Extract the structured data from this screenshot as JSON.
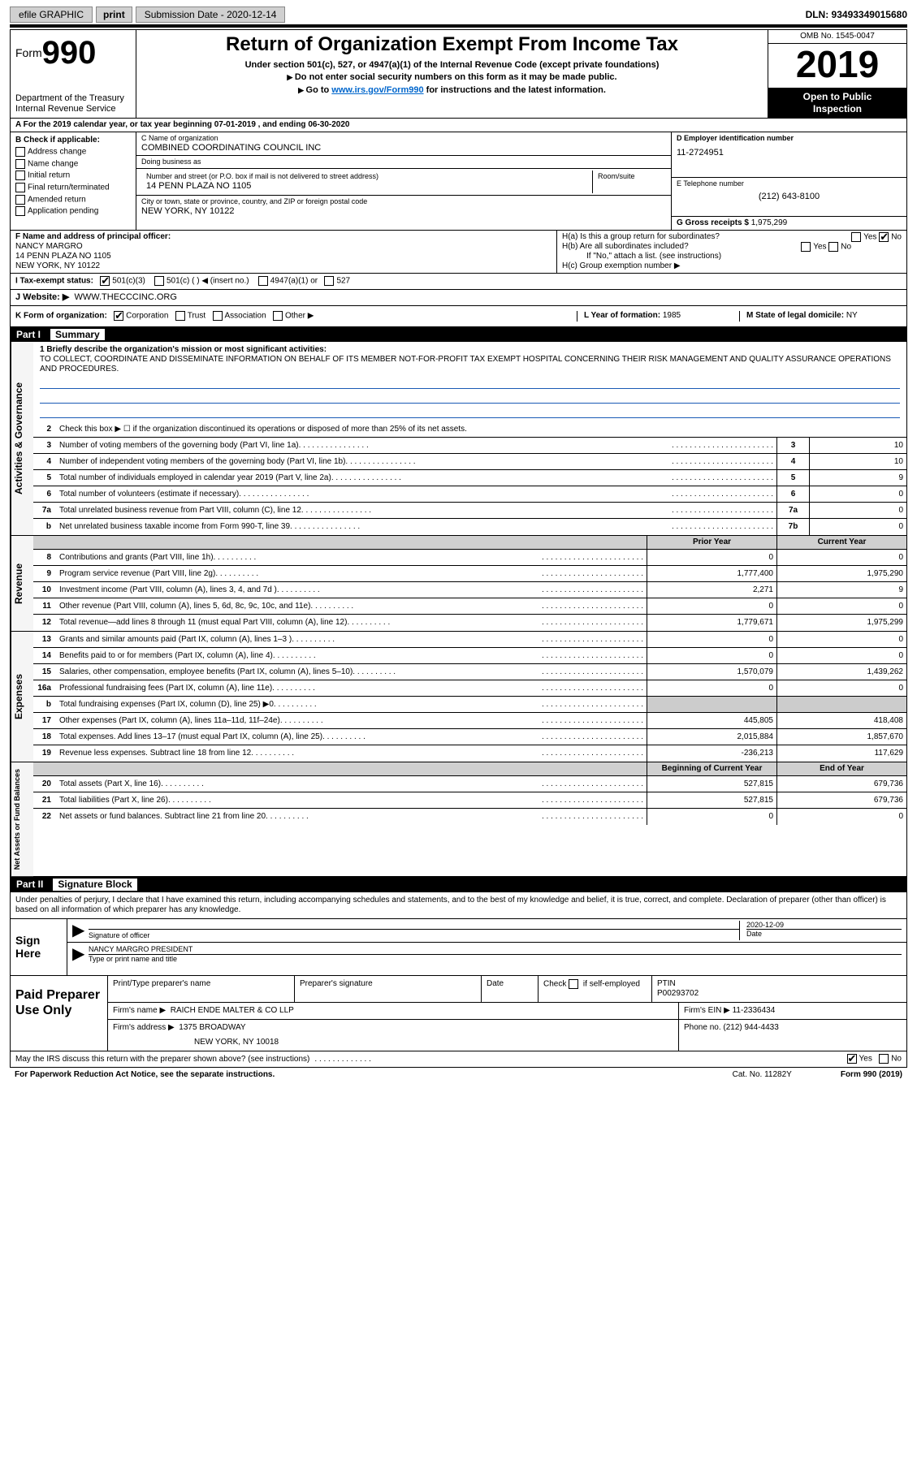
{
  "topbar": {
    "efile": "efile GRAPHIC",
    "print": "print",
    "sub_date_label": "Submission Date - 2020-12-14",
    "dln": "DLN: 93493349015680"
  },
  "header": {
    "form_word": "Form",
    "form_num": "990",
    "title": "Return of Organization Exempt From Income Tax",
    "sub1": "Under section 501(c), 527, or 4947(a)(1) of the Internal Revenue Code (except private foundations)",
    "sub2": "Do not enter social security numbers on this form as it may be made public.",
    "sub3_pre": "Go to ",
    "sub3_link": "www.irs.gov/Form990",
    "sub3_post": " for instructions and the latest information.",
    "dept1": "Department of the Treasury",
    "dept2": "Internal Revenue Service",
    "omb": "OMB No. 1545-0047",
    "year": "2019",
    "open1": "Open to Public",
    "open2": "Inspection"
  },
  "rowA": "A For the 2019 calendar year, or tax year beginning 07-01-2019   , and ending 06-30-2020",
  "B": {
    "label": "B Check if applicable:",
    "items": [
      "Address change",
      "Name change",
      "Initial return",
      "Final return/terminated",
      "Amended return",
      "Application pending"
    ]
  },
  "C": {
    "name_lbl": "C Name of organization",
    "name": "COMBINED COORDINATING COUNCIL INC",
    "dba_lbl": "Doing business as",
    "dba": "",
    "addr_lbl": "Number and street (or P.O. box if mail is not delivered to street address)",
    "room_lbl": "Room/suite",
    "addr": "14 PENN PLAZA NO 1105",
    "city_lbl": "City or town, state or province, country, and ZIP or foreign postal code",
    "city": "NEW YORK, NY  10122"
  },
  "D": {
    "lbl": "D Employer identification number",
    "val": "11-2724951"
  },
  "E": {
    "lbl": "E Telephone number",
    "val": "(212) 643-8100"
  },
  "G": {
    "lbl": "G Gross receipts $ ",
    "val": "1,975,299"
  },
  "F": {
    "lbl": "F  Name and address of principal officer:",
    "name": "NANCY MARGRO",
    "addr1": "14 PENN PLAZA NO 1105",
    "addr2": "NEW YORK, NY  10122"
  },
  "H": {
    "a": "H(a)  Is this a group return for subordinates?",
    "b": "H(b)  Are all subordinates included?",
    "b_note": "If \"No,\" attach a list. (see instructions)",
    "c": "H(c)  Group exemption number ▶",
    "yes": "Yes",
    "no": "No"
  },
  "I": {
    "lbl": "I  Tax-exempt status:",
    "opts": [
      "501(c)(3)",
      "501(c) (  ) ◀ (insert no.)",
      "4947(a)(1) or",
      "527"
    ]
  },
  "J": {
    "lbl": "J   Website: ▶",
    "val": "WWW.THECCCINC.ORG"
  },
  "K": {
    "lbl": "K Form of organization:",
    "opts": [
      "Corporation",
      "Trust",
      "Association",
      "Other ▶"
    ]
  },
  "L": {
    "lbl": "L Year of formation: ",
    "val": "1985"
  },
  "M": {
    "lbl": "M State of legal domicile: ",
    "val": "NY"
  },
  "part1": {
    "num": "Part I",
    "title": "Summary"
  },
  "mission": {
    "lbl": "1  Briefly describe the organization's mission or most significant activities:",
    "txt": "TO COLLECT, COORDINATE AND DISSEMINATE INFORMATION ON BEHALF OF ITS MEMBER NOT-FOR-PROFIT TAX EXEMPT HOSPITAL CONCERNING THEIR RISK MANAGEMENT AND QUALITY ASSURANCE OPERATIONS AND PROCEDURES."
  },
  "line2": "Check this box ▶ ☐  if the organization discontinued its operations or disposed of more than 25% of its net assets.",
  "gov_lines": [
    {
      "n": "3",
      "t": "Number of voting members of the governing body (Part VI, line 1a)",
      "b": "3",
      "v": "10"
    },
    {
      "n": "4",
      "t": "Number of independent voting members of the governing body (Part VI, line 1b)",
      "b": "4",
      "v": "10"
    },
    {
      "n": "5",
      "t": "Total number of individuals employed in calendar year 2019 (Part V, line 2a)",
      "b": "5",
      "v": "9"
    },
    {
      "n": "6",
      "t": "Total number of volunteers (estimate if necessary)",
      "b": "6",
      "v": "0"
    },
    {
      "n": "7a",
      "t": "Total unrelated business revenue from Part VIII, column (C), line 12",
      "b": "7a",
      "v": "0"
    },
    {
      "n": "b",
      "t": "Net unrelated business taxable income from Form 990-T, line 39",
      "b": "7b",
      "v": "0"
    }
  ],
  "th": {
    "prior": "Prior Year",
    "current": "Current Year",
    "begin": "Beginning of Current Year",
    "end": "End of Year"
  },
  "rev_lines": [
    {
      "n": "8",
      "t": "Contributions and grants (Part VIII, line 1h)",
      "p": "0",
      "c": "0"
    },
    {
      "n": "9",
      "t": "Program service revenue (Part VIII, line 2g)",
      "p": "1,777,400",
      "c": "1,975,290"
    },
    {
      "n": "10",
      "t": "Investment income (Part VIII, column (A), lines 3, 4, and 7d )",
      "p": "2,271",
      "c": "9"
    },
    {
      "n": "11",
      "t": "Other revenue (Part VIII, column (A), lines 5, 6d, 8c, 9c, 10c, and 11e)",
      "p": "0",
      "c": "0"
    },
    {
      "n": "12",
      "t": "Total revenue—add lines 8 through 11 (must equal Part VIII, column (A), line 12)",
      "p": "1,779,671",
      "c": "1,975,299"
    }
  ],
  "exp_lines": [
    {
      "n": "13",
      "t": "Grants and similar amounts paid (Part IX, column (A), lines 1–3 )",
      "p": "0",
      "c": "0"
    },
    {
      "n": "14",
      "t": "Benefits paid to or for members (Part IX, column (A), line 4)",
      "p": "0",
      "c": "0"
    },
    {
      "n": "15",
      "t": "Salaries, other compensation, employee benefits (Part IX, column (A), lines 5–10)",
      "p": "1,570,079",
      "c": "1,439,262"
    },
    {
      "n": "16a",
      "t": "Professional fundraising fees (Part IX, column (A), line 11e)",
      "p": "0",
      "c": "0"
    },
    {
      "n": "b",
      "t": "Total fundraising expenses (Part IX, column (D), line 25) ▶0",
      "p": "",
      "c": "",
      "grey": true
    },
    {
      "n": "17",
      "t": "Other expenses (Part IX, column (A), lines 11a–11d, 11f–24e)",
      "p": "445,805",
      "c": "418,408"
    },
    {
      "n": "18",
      "t": "Total expenses. Add lines 13–17 (must equal Part IX, column (A), line 25)",
      "p": "2,015,884",
      "c": "1,857,670"
    },
    {
      "n": "19",
      "t": "Revenue less expenses. Subtract line 18 from line 12",
      "p": "-236,213",
      "c": "117,629"
    }
  ],
  "na_lines": [
    {
      "n": "20",
      "t": "Total assets (Part X, line 16)",
      "p": "527,815",
      "c": "679,736"
    },
    {
      "n": "21",
      "t": "Total liabilities (Part X, line 26)",
      "p": "527,815",
      "c": "679,736"
    },
    {
      "n": "22",
      "t": "Net assets or fund balances. Subtract line 21 from line 20",
      "p": "0",
      "c": "0"
    }
  ],
  "vtabs": {
    "gov": "Activities & Governance",
    "rev": "Revenue",
    "exp": "Expenses",
    "na": "Net Assets or Fund Balances"
  },
  "part2": {
    "num": "Part II",
    "title": "Signature Block"
  },
  "sig": {
    "intro": "Under penalties of perjury, I declare that I have examined this return, including accompanying schedules and statements, and to the best of my knowledge and belief, it is true, correct, and complete. Declaration of preparer (other than officer) is based on all information of which preparer has any knowledge.",
    "here": "Sign Here",
    "sig_lbl": "Signature of officer",
    "date_lbl": "Date",
    "date": "2020-12-09",
    "name": "NANCY MARGRO  PRESIDENT",
    "type_lbl": "Type or print name and title"
  },
  "prep": {
    "title": "Paid Preparer Use Only",
    "h1": "Print/Type preparer's name",
    "h2": "Preparer's signature",
    "h3": "Date",
    "h4_pre": "Check",
    "h4_post": "if self-employed",
    "h5": "PTIN",
    "ptin": "P00293702",
    "firm_lbl": "Firm's name     ▶",
    "firm": "RAICH ENDE MALTER & CO LLP",
    "ein_lbl": "Firm's EIN ▶",
    "ein": "11-2336434",
    "addr_lbl": "Firm's address ▶",
    "addr1": "1375 BROADWAY",
    "addr2": "NEW YORK, NY  10018",
    "phone_lbl": "Phone no. ",
    "phone": "(212) 944-4433"
  },
  "discuss": {
    "q": "May the IRS discuss this return with the preparer shown above? (see instructions)",
    "yes": "Yes",
    "no": "No"
  },
  "footer": {
    "pra": "For Paperwork Reduction Act Notice, see the separate instructions.",
    "cat": "Cat. No. 11282Y",
    "form": "Form 990 (2019)"
  }
}
